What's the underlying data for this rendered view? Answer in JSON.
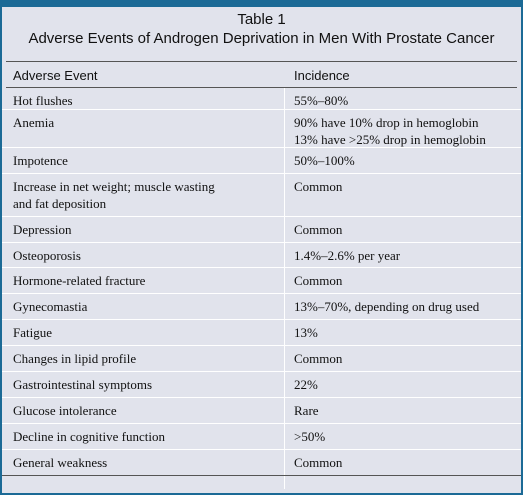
{
  "table": {
    "label": "Table 1",
    "caption": "Adverse Events of Androgen Deprivation in Men With Prostate Cancer",
    "headers": {
      "event": "Adverse Event",
      "incidence": "Incidence"
    },
    "rows": [
      {
        "event": "Hot flushes",
        "incidence": "55%–80%"
      },
      {
        "event": "Anemia",
        "incidence": "90% have 10% drop in hemoglobin\n13% have >25% drop in hemoglobin"
      },
      {
        "event": "Impotence",
        "incidence": "50%–100%"
      },
      {
        "event": "Increase in net weight; muscle wasting\nand fat deposition",
        "incidence": "Common"
      },
      {
        "event": "Depression",
        "incidence": "Common"
      },
      {
        "event": "Osteoporosis",
        "incidence": "1.4%–2.6% per year"
      },
      {
        "event": "Hormone-related fracture",
        "incidence": "Common"
      },
      {
        "event": "Gynecomastia",
        "incidence": "13%–70%, depending on drug used"
      },
      {
        "event": "Fatigue",
        "incidence": "13%"
      },
      {
        "event": "Changes in lipid profile",
        "incidence": "Common"
      },
      {
        "event": "Gastrointestinal symptoms",
        "incidence": "22%"
      },
      {
        "event": "Glucose intolerance",
        "incidence": "Rare"
      },
      {
        "event": "Decline in cognitive function",
        "incidence": ">50%"
      },
      {
        "event": "General weakness",
        "incidence": "Common"
      }
    ]
  },
  "colors": {
    "border": "#1b6a96",
    "background": "#e1e3ec",
    "row_divider": "#ffffff"
  }
}
